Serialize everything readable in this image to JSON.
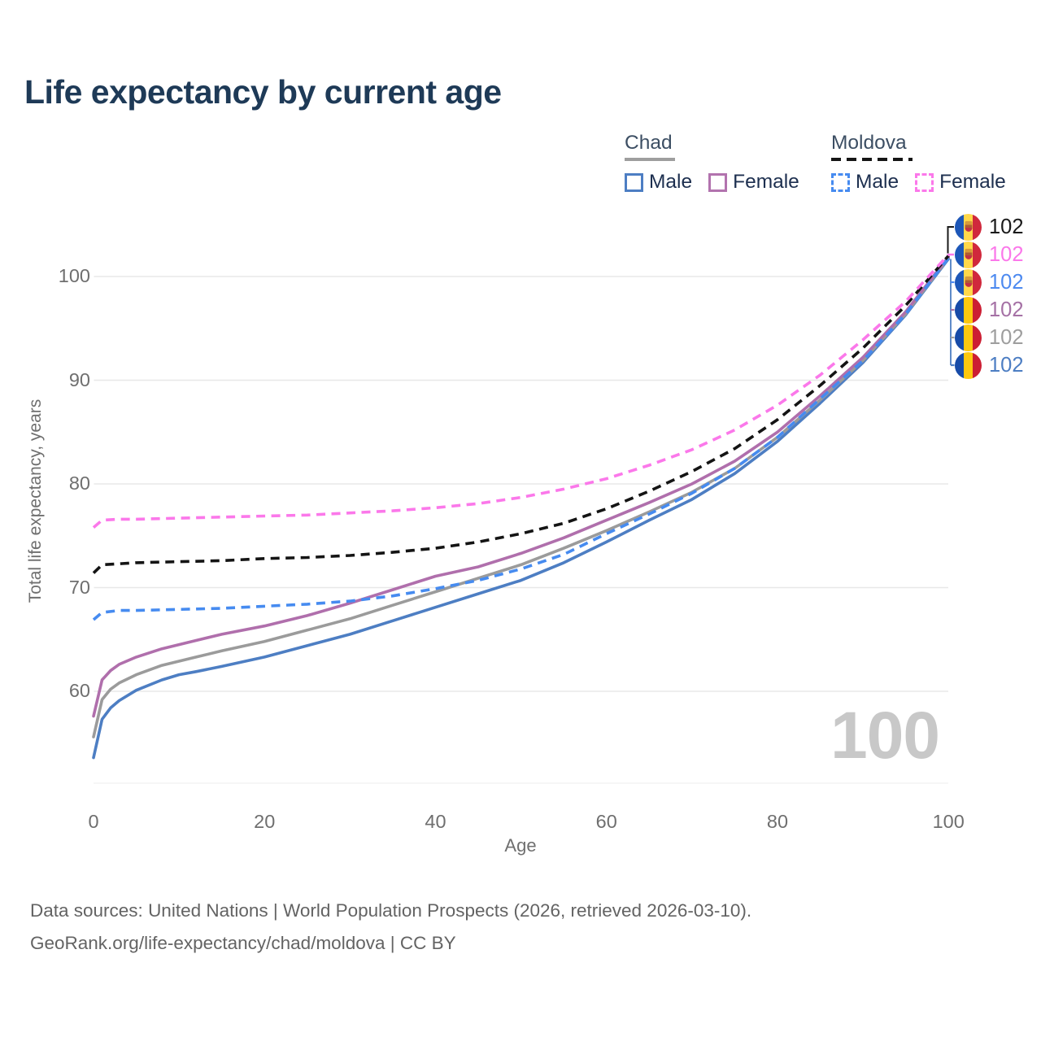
{
  "title": "Life expectancy by current age",
  "watermark": {
    "value": "100"
  },
  "footer": {
    "line1": "Data sources: United Nations | World Population Prospects (2026, retrieved 2026-03-10).",
    "line2": "GeoRank.org/life-expectancy/chad/moldova | CC BY"
  },
  "legend": {
    "groups": [
      {
        "name": "Chad",
        "underline_style": "solid",
        "underline_color": "#9e9e9e",
        "items": [
          {
            "label": "Male",
            "color": "#4d7ec3",
            "dashed": false
          },
          {
            "label": "Female",
            "color": "#b273ae",
            "dashed": false
          }
        ]
      },
      {
        "name": "Moldova",
        "underline_style": "dashed",
        "underline_color": "#151515",
        "items": [
          {
            "label": "Male",
            "color": "#468bf0",
            "dashed": true
          },
          {
            "label": "Female",
            "color": "#fb78ea",
            "dashed": true
          }
        ]
      }
    ]
  },
  "flags": {
    "moldova": {
      "stripes": [
        "#1d57b8",
        "#ffd84a",
        "#d0283c"
      ],
      "emblem": true
    },
    "chad": {
      "stripes": [
        "#174ba8",
        "#fdc80f",
        "#cc1e33"
      ],
      "emblem": false
    }
  },
  "end_labels": [
    {
      "flag": "moldova",
      "value": "102",
      "color": "#1a1a1a"
    },
    {
      "flag": "moldova",
      "value": "102",
      "color": "#fb78ea"
    },
    {
      "flag": "moldova",
      "value": "102",
      "color": "#4d8af0"
    },
    {
      "flag": "chad",
      "value": "102",
      "color": "#a571a5"
    },
    {
      "flag": "chad",
      "value": "102",
      "color": "#9e9e9e"
    },
    {
      "flag": "chad",
      "value": "102",
      "color": "#4d7ec3"
    }
  ],
  "chart_data": {
    "type": "line",
    "title": "Life expectancy by current age",
    "xlabel": "Age",
    "ylabel": "Total life expectancy, years",
    "xlim": [
      0,
      100
    ],
    "ylim": [
      51,
      105
    ],
    "x_ticks": [
      0,
      20,
      40,
      60,
      80,
      100
    ],
    "y_ticks": [
      60,
      70,
      80,
      90,
      100
    ],
    "grid": "horizontal",
    "legend_position": "top-right",
    "series": [
      {
        "id": "chad-male",
        "name": "Chad — Male",
        "country": "Chad",
        "sex": "Male",
        "color": "#4d7ec3",
        "dash": false,
        "end_label": "102",
        "points": [
          [
            0,
            53.6
          ],
          [
            1,
            57.3
          ],
          [
            2,
            58.4
          ],
          [
            3,
            59.1
          ],
          [
            5,
            60.1
          ],
          [
            8,
            61.1
          ],
          [
            10,
            61.6
          ],
          [
            12,
            61.9
          ],
          [
            15,
            62.4
          ],
          [
            20,
            63.3
          ],
          [
            25,
            64.4
          ],
          [
            30,
            65.5
          ],
          [
            35,
            66.8
          ],
          [
            40,
            68.1
          ],
          [
            45,
            69.4
          ],
          [
            50,
            70.7
          ],
          [
            55,
            72.4
          ],
          [
            60,
            74.4
          ],
          [
            65,
            76.5
          ],
          [
            70,
            78.5
          ],
          [
            75,
            81.0
          ],
          [
            80,
            84.1
          ],
          [
            85,
            87.8
          ],
          [
            90,
            91.7
          ],
          [
            95,
            96.3
          ],
          [
            100,
            101.7
          ]
        ]
      },
      {
        "id": "chad-total",
        "name": "Chad — Both sexes",
        "country": "Chad",
        "sex": "Both",
        "color": "#9b9b9b",
        "dash": false,
        "end_label": "102",
        "points": [
          [
            0,
            55.6
          ],
          [
            1,
            59.2
          ],
          [
            2,
            60.2
          ],
          [
            3,
            60.8
          ],
          [
            5,
            61.6
          ],
          [
            8,
            62.5
          ],
          [
            10,
            62.9
          ],
          [
            12,
            63.3
          ],
          [
            15,
            63.9
          ],
          [
            20,
            64.8
          ],
          [
            25,
            65.9
          ],
          [
            30,
            67.0
          ],
          [
            35,
            68.3
          ],
          [
            40,
            69.6
          ],
          [
            45,
            70.9
          ],
          [
            50,
            72.2
          ],
          [
            55,
            73.8
          ],
          [
            60,
            75.5
          ],
          [
            65,
            77.3
          ],
          [
            70,
            79.2
          ],
          [
            75,
            81.5
          ],
          [
            80,
            84.5
          ],
          [
            85,
            88.1
          ],
          [
            90,
            91.9
          ],
          [
            95,
            96.4
          ],
          [
            100,
            101.8
          ]
        ]
      },
      {
        "id": "chad-female",
        "name": "Chad — Female",
        "country": "Chad",
        "sex": "Female",
        "color": "#b06fac",
        "dash": false,
        "end_label": "102",
        "points": [
          [
            0,
            57.6
          ],
          [
            1,
            61.1
          ],
          [
            2,
            62.0
          ],
          [
            3,
            62.6
          ],
          [
            5,
            63.3
          ],
          [
            8,
            64.1
          ],
          [
            10,
            64.5
          ],
          [
            12,
            64.9
          ],
          [
            15,
            65.5
          ],
          [
            20,
            66.3
          ],
          [
            25,
            67.3
          ],
          [
            30,
            68.5
          ],
          [
            35,
            69.8
          ],
          [
            40,
            71.1
          ],
          [
            45,
            72.0
          ],
          [
            50,
            73.3
          ],
          [
            55,
            74.8
          ],
          [
            60,
            76.5
          ],
          [
            65,
            78.2
          ],
          [
            70,
            80.0
          ],
          [
            75,
            82.2
          ],
          [
            80,
            85.0
          ],
          [
            85,
            88.5
          ],
          [
            90,
            92.2
          ],
          [
            95,
            96.6
          ],
          [
            100,
            101.9
          ]
        ]
      },
      {
        "id": "moldova-male",
        "name": "Moldova — Male",
        "country": "Moldova",
        "sex": "Male",
        "color": "#468bf0",
        "dash": true,
        "end_label": "102",
        "points": [
          [
            0,
            66.9
          ],
          [
            1,
            67.6
          ],
          [
            3,
            67.8
          ],
          [
            5,
            67.8
          ],
          [
            10,
            67.9
          ],
          [
            15,
            68.0
          ],
          [
            20,
            68.2
          ],
          [
            25,
            68.4
          ],
          [
            30,
            68.7
          ],
          [
            35,
            69.2
          ],
          [
            40,
            69.9
          ],
          [
            45,
            70.7
          ],
          [
            50,
            71.8
          ],
          [
            55,
            73.2
          ],
          [
            60,
            75.2
          ],
          [
            65,
            77.1
          ],
          [
            70,
            79.1
          ],
          [
            75,
            81.5
          ],
          [
            80,
            84.5
          ],
          [
            85,
            88.2
          ],
          [
            90,
            91.9
          ],
          [
            95,
            96.4
          ],
          [
            100,
            101.8
          ]
        ]
      },
      {
        "id": "moldova-total",
        "name": "Moldova — Both sexes",
        "country": "Moldova",
        "sex": "Both",
        "color": "#141414",
        "dash": true,
        "end_label": "102",
        "points": [
          [
            0,
            71.4
          ],
          [
            1,
            72.2
          ],
          [
            3,
            72.3
          ],
          [
            5,
            72.4
          ],
          [
            10,
            72.5
          ],
          [
            15,
            72.6
          ],
          [
            20,
            72.8
          ],
          [
            25,
            72.9
          ],
          [
            30,
            73.1
          ],
          [
            35,
            73.4
          ],
          [
            40,
            73.8
          ],
          [
            45,
            74.4
          ],
          [
            50,
            75.2
          ],
          [
            55,
            76.2
          ],
          [
            60,
            77.6
          ],
          [
            65,
            79.3
          ],
          [
            70,
            81.2
          ],
          [
            75,
            83.4
          ],
          [
            80,
            86.2
          ],
          [
            85,
            89.5
          ],
          [
            90,
            93.1
          ],
          [
            95,
            97.2
          ],
          [
            100,
            102.0
          ]
        ]
      },
      {
        "id": "moldova-female",
        "name": "Moldova — Female",
        "country": "Moldova",
        "sex": "Female",
        "color": "#fb78ea",
        "dash": true,
        "end_label": "102",
        "points": [
          [
            0,
            75.8
          ],
          [
            1,
            76.5
          ],
          [
            3,
            76.6
          ],
          [
            5,
            76.6
          ],
          [
            10,
            76.7
          ],
          [
            15,
            76.8
          ],
          [
            20,
            76.9
          ],
          [
            25,
            77.0
          ],
          [
            30,
            77.2
          ],
          [
            35,
            77.4
          ],
          [
            40,
            77.7
          ],
          [
            45,
            78.1
          ],
          [
            50,
            78.7
          ],
          [
            55,
            79.5
          ],
          [
            60,
            80.5
          ],
          [
            65,
            81.8
          ],
          [
            70,
            83.3
          ],
          [
            75,
            85.2
          ],
          [
            80,
            87.6
          ],
          [
            85,
            90.5
          ],
          [
            90,
            93.9
          ],
          [
            95,
            97.6
          ],
          [
            100,
            102.1
          ]
        ]
      }
    ]
  }
}
